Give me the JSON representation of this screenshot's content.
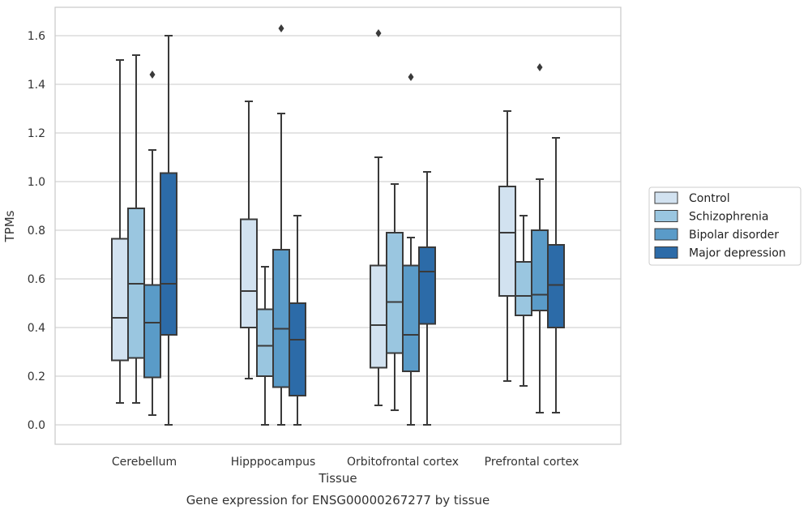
{
  "caption": "Gene expression for ENSG00000267277 by tissue",
  "chart_data": {
    "type": "box",
    "xlabel": "Tissue",
    "ylabel": "TPMs",
    "ylim": [
      -0.08,
      1.72
    ],
    "yticks": [
      "0.0",
      "0.2",
      "0.4",
      "0.6",
      "0.8",
      "1.0",
      "1.2",
      "1.4",
      "1.6"
    ],
    "grid": true,
    "legend_placement": "right",
    "categories": [
      "Cerebellum",
      "Hipppocampus",
      "Orbitofrontal cortex",
      "Prefrontal cortex"
    ],
    "series": [
      {
        "name": "Control",
        "color": "#d2e2f0",
        "boxes": [
          {
            "min": 0.09,
            "q1": 0.265,
            "median": 0.44,
            "q3": 0.765,
            "max": 1.5,
            "outliers": []
          },
          {
            "min": 0.19,
            "q1": 0.4,
            "median": 0.55,
            "q3": 0.845,
            "max": 1.33,
            "outliers": []
          },
          {
            "min": 0.08,
            "q1": 0.235,
            "median": 0.41,
            "q3": 0.655,
            "max": 1.1,
            "outliers": [
              1.61
            ]
          },
          {
            "min": 0.18,
            "q1": 0.53,
            "median": 0.79,
            "q3": 0.98,
            "max": 1.29,
            "outliers": []
          }
        ]
      },
      {
        "name": "Schizophrenia",
        "color": "#9ac6e0",
        "boxes": [
          {
            "min": 0.09,
            "q1": 0.275,
            "median": 0.58,
            "q3": 0.89,
            "max": 1.52,
            "outliers": []
          },
          {
            "min": 0.0,
            "q1": 0.2,
            "median": 0.325,
            "q3": 0.475,
            "max": 0.65,
            "outliers": []
          },
          {
            "min": 0.06,
            "q1": 0.295,
            "median": 0.505,
            "q3": 0.79,
            "max": 0.99,
            "outliers": []
          },
          {
            "min": 0.16,
            "q1": 0.45,
            "median": 0.53,
            "q3": 0.67,
            "max": 0.86,
            "outliers": []
          }
        ]
      },
      {
        "name": "Bipolar disorder",
        "color": "#5a9bc8",
        "boxes": [
          {
            "min": 0.04,
            "q1": 0.195,
            "median": 0.42,
            "q3": 0.575,
            "max": 1.13,
            "outliers": [
              1.44
            ]
          },
          {
            "min": 0.0,
            "q1": 0.155,
            "median": 0.395,
            "q3": 0.72,
            "max": 1.28,
            "outliers": [
              1.63
            ]
          },
          {
            "min": 0.0,
            "q1": 0.22,
            "median": 0.37,
            "q3": 0.655,
            "max": 0.77,
            "outliers": [
              1.43
            ]
          },
          {
            "min": 0.05,
            "q1": 0.47,
            "median": 0.535,
            "q3": 0.8,
            "max": 1.01,
            "outliers": [
              1.47
            ]
          }
        ]
      },
      {
        "name": "Major depression",
        "color": "#2c6ba8",
        "boxes": [
          {
            "min": 0.0,
            "q1": 0.37,
            "median": 0.58,
            "q3": 1.035,
            "max": 1.6,
            "outliers": []
          },
          {
            "min": 0.0,
            "q1": 0.12,
            "median": 0.35,
            "q3": 0.5,
            "max": 0.86,
            "outliers": []
          },
          {
            "min": 0.0,
            "q1": 0.415,
            "median": 0.63,
            "q3": 0.73,
            "max": 1.04,
            "outliers": []
          },
          {
            "min": 0.05,
            "q1": 0.4,
            "median": 0.575,
            "q3": 0.74,
            "max": 1.18,
            "outliers": []
          }
        ]
      }
    ]
  }
}
